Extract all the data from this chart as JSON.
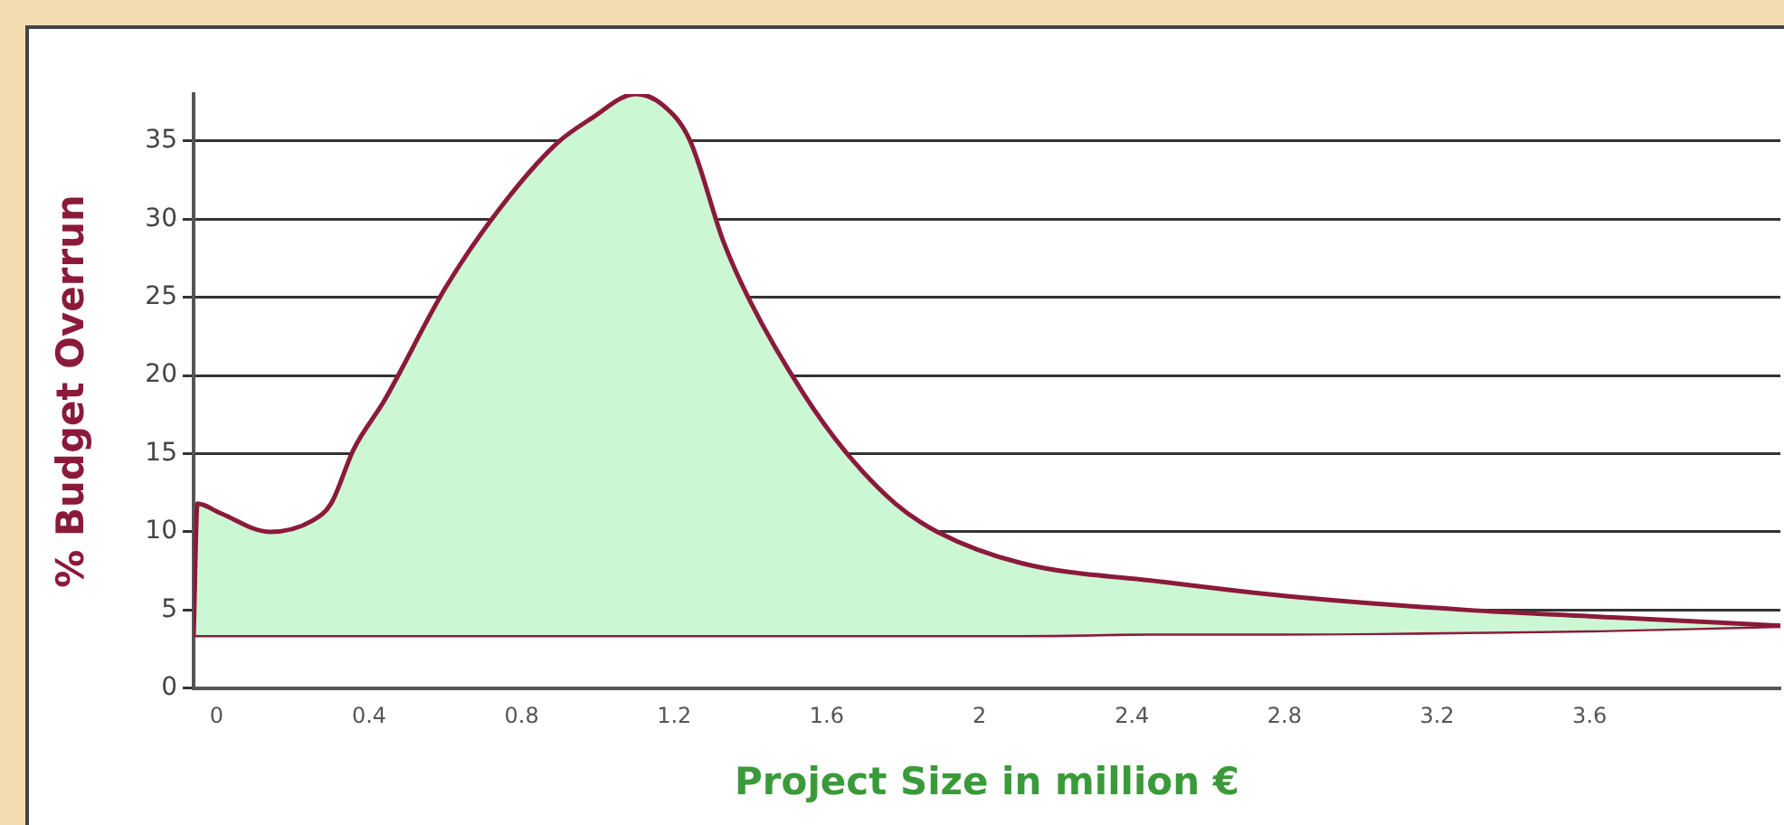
{
  "chart_data": {
    "type": "area",
    "xlabel": "Project Size in million €",
    "ylabel": "% Budget Overrun",
    "x": [
      -0.06,
      -0.05,
      0.01,
      0.14,
      0.25,
      0.3,
      0.36,
      0.44,
      0.6,
      0.74,
      0.89,
      0.98,
      1.1,
      1.17,
      1.24,
      1.33,
      1.4,
      1.54,
      1.65,
      1.78,
      1.89,
      2.11,
      2.48,
      2.8,
      3.28,
      3.6,
      4.1
    ],
    "series": [
      {
        "color": "#ccf7d4",
        "values": [
          3.4,
          11.8,
          11.2,
          10,
          10.7,
          11.8,
          15.3,
          18.4,
          25.6,
          30.6,
          34.8,
          36.4,
          38,
          37.3,
          35.1,
          28.5,
          24.7,
          18.8,
          15.1,
          11.8,
          10,
          8,
          6.8,
          5.9,
          5,
          4.6,
          4
        ]
      },
      {
        "type": "line",
        "color": "#8b1a3a",
        "values": [
          3.4,
          3.4,
          3.4,
          3.4,
          3.4,
          3.4,
          3.4,
          3.4,
          3.4,
          3.4,
          3.4,
          3.4,
          3.4,
          3.4,
          3.4,
          3.4,
          3.4,
          3.4,
          3.4,
          3.4,
          3.4,
          3.4,
          3.5,
          3.5,
          3.6,
          3.7,
          4
        ]
      }
    ],
    "xlim": [
      -0.06,
      4.1
    ],
    "xticks": [
      0,
      0.4,
      0.8,
      1.2,
      1.6,
      2,
      2.4,
      2.8,
      3.2,
      3.6
    ],
    "ylim": [
      0,
      38
    ],
    "yticks": [
      0,
      5,
      10,
      15,
      20,
      25,
      30,
      35
    ],
    "grid": "y",
    "legend": false,
    "marker": "none",
    "line_style": "solid"
  }
}
